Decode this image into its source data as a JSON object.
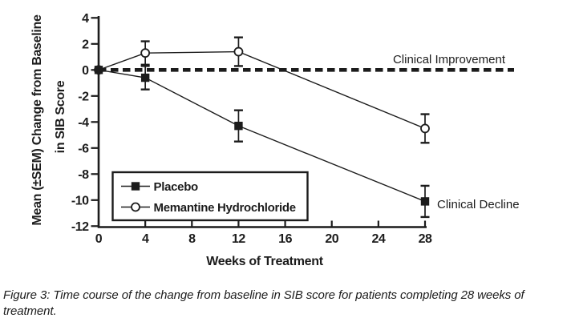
{
  "figure_caption": "Figure 3: Time course of the change from baseline in SIB score for patients completing 28 weeks of treatment.",
  "chart_data": {
    "type": "line",
    "title": "",
    "xlabel": "Weeks of Treatment",
    "ylabel_lines": [
      "Mean (±SEM) Change from Baseline",
      "in SIB Score"
    ],
    "x_ticks": [
      0,
      4,
      8,
      12,
      16,
      20,
      24,
      28
    ],
    "y_ticks": [
      4,
      2,
      0,
      -2,
      -4,
      -6,
      -8,
      -10,
      -12
    ],
    "xlim": [
      0,
      28
    ],
    "ylim": [
      -12,
      4
    ],
    "grid": false,
    "x": [
      0,
      4,
      12,
      28
    ],
    "series": [
      {
        "name": "Placebo",
        "marker": "filled-square",
        "values": [
          0,
          -0.6,
          -4.3,
          -10.1
        ],
        "sem": [
          0,
          0.9,
          1.2,
          1.2
        ]
      },
      {
        "name": "Memantine Hydrochloride",
        "marker": "open-circle",
        "values": [
          0,
          1.3,
          1.4,
          -4.5
        ],
        "sem": [
          0,
          0.9,
          1.1,
          1.1
        ]
      }
    ],
    "reference_line": {
      "value": 0,
      "style": "dashed",
      "label_above": "Clinical Improvement"
    },
    "annotation_decline": "Clinical Decline",
    "legend_position": "lower-left-inside",
    "ink_color": "#1c1c1c",
    "background": "#ffffff"
  }
}
